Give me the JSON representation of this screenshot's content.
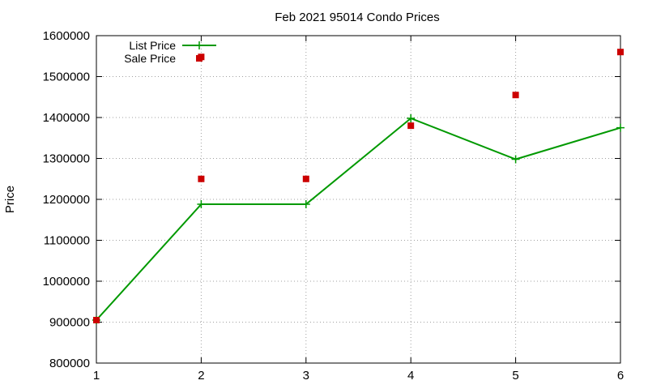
{
  "chart_data": {
    "type": "line",
    "title": "Feb 2021 95014 Condo Prices",
    "xlabel": "",
    "ylabel": "Price",
    "x": [
      1,
      2,
      3,
      4,
      5,
      6
    ],
    "xlim": [
      1,
      6
    ],
    "ylim": [
      800000,
      1600000
    ],
    "xticks": [
      "1",
      "2",
      "3",
      "4",
      "5",
      "6"
    ],
    "yticks": [
      "800000",
      "900000",
      "1000000",
      "1100000",
      "1200000",
      "1300000",
      "1400000",
      "1500000",
      "1600000"
    ],
    "grid": true,
    "legend_position": "top-left",
    "series": [
      {
        "name": "List Price",
        "style": "line-with-plus-markers",
        "color": "#009900",
        "values": [
          905000,
          1188000,
          1188000,
          1398000,
          1298000,
          1375000
        ]
      },
      {
        "name": "Sale Price",
        "style": "square-markers",
        "color": "#cc0000",
        "values": [
          905000,
          1548000,
          1250000,
          1380000,
          1455000,
          1560000
        ]
      },
      {
        "name": "",
        "style": "square-markers",
        "color": "#cc0000",
        "values": [
          null,
          1250000,
          null,
          null,
          null,
          null
        ]
      }
    ]
  }
}
